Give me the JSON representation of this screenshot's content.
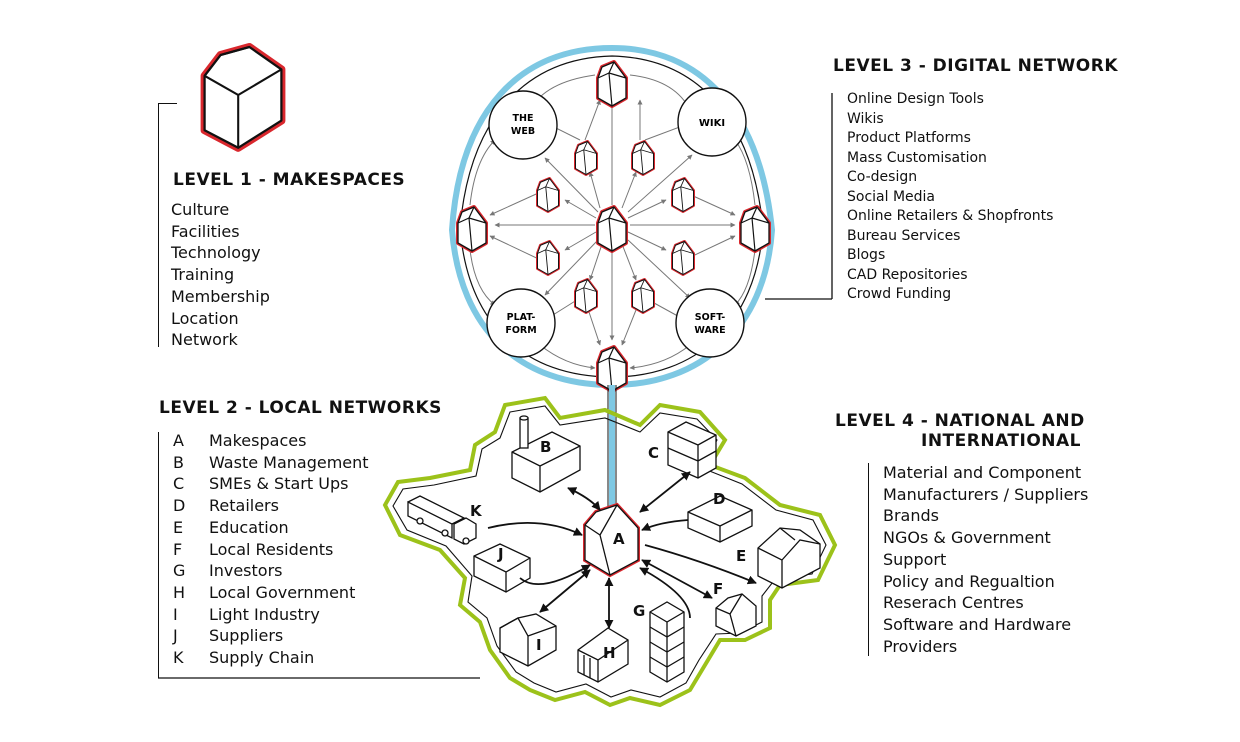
{
  "level1": {
    "heading": "LEVEL 1 - MAKESPACES",
    "items": [
      "Culture",
      "Facilities",
      "Technology",
      "Training",
      "Membership",
      "Location",
      "Network"
    ]
  },
  "level2": {
    "heading": "LEVEL 2 - LOCAL NETWORKS",
    "items": [
      {
        "letter": "A",
        "label": "Makespaces"
      },
      {
        "letter": "B",
        "label": "Waste Management"
      },
      {
        "letter": "C",
        "label": "SMEs & Start Ups"
      },
      {
        "letter": "D",
        "label": "Retailers"
      },
      {
        "letter": "E",
        "label": "Education"
      },
      {
        "letter": "F",
        "label": "Local Residents"
      },
      {
        "letter": "G",
        "label": "Investors"
      },
      {
        "letter": "H",
        "label": "Local Government"
      },
      {
        "letter": "I",
        "label": "Light Industry"
      },
      {
        "letter": "J",
        "label": "Suppliers"
      },
      {
        "letter": "K",
        "label": "Supply Chain"
      }
    ]
  },
  "level3": {
    "heading": "LEVEL 3 - DIGITAL NETWORK",
    "items": [
      "Online Design Tools",
      "Wikis",
      "Product Platforms",
      "Mass Customisation",
      "Co-design",
      "Social Media",
      "Online Retailers & Shopfronts",
      "Bureau Services",
      "Blogs",
      "CAD Repositories",
      "Crowd Funding"
    ]
  },
  "level4": {
    "heading_line1": "LEVEL 4 - NATIONAL AND",
    "heading_line2": "INTERNATIONAL",
    "items": [
      "Material and Component",
      "Manufacturers / Suppliers",
      "Brands",
      "NGOs & Government",
      "Support",
      "Policy and Regualtion",
      "Reserach Centres",
      "Software and Hardware",
      "Providers"
    ]
  },
  "nodes": {
    "web_line1": "THE",
    "web_line2": "WEB",
    "wiki": "WIKI",
    "platform_line1": "PLAT-",
    "platform_line2": "FORM",
    "software_line1": "SOFT-",
    "software_line2": "WARE"
  },
  "local_labels": [
    "A",
    "B",
    "C",
    "D",
    "E",
    "F",
    "G",
    "H",
    "I",
    "J",
    "K"
  ],
  "colors": {
    "digital_ring": "#7ec8e3",
    "local_boundary": "#9cc21a",
    "makespace_red": "#d9272d",
    "ink": "#111111"
  }
}
